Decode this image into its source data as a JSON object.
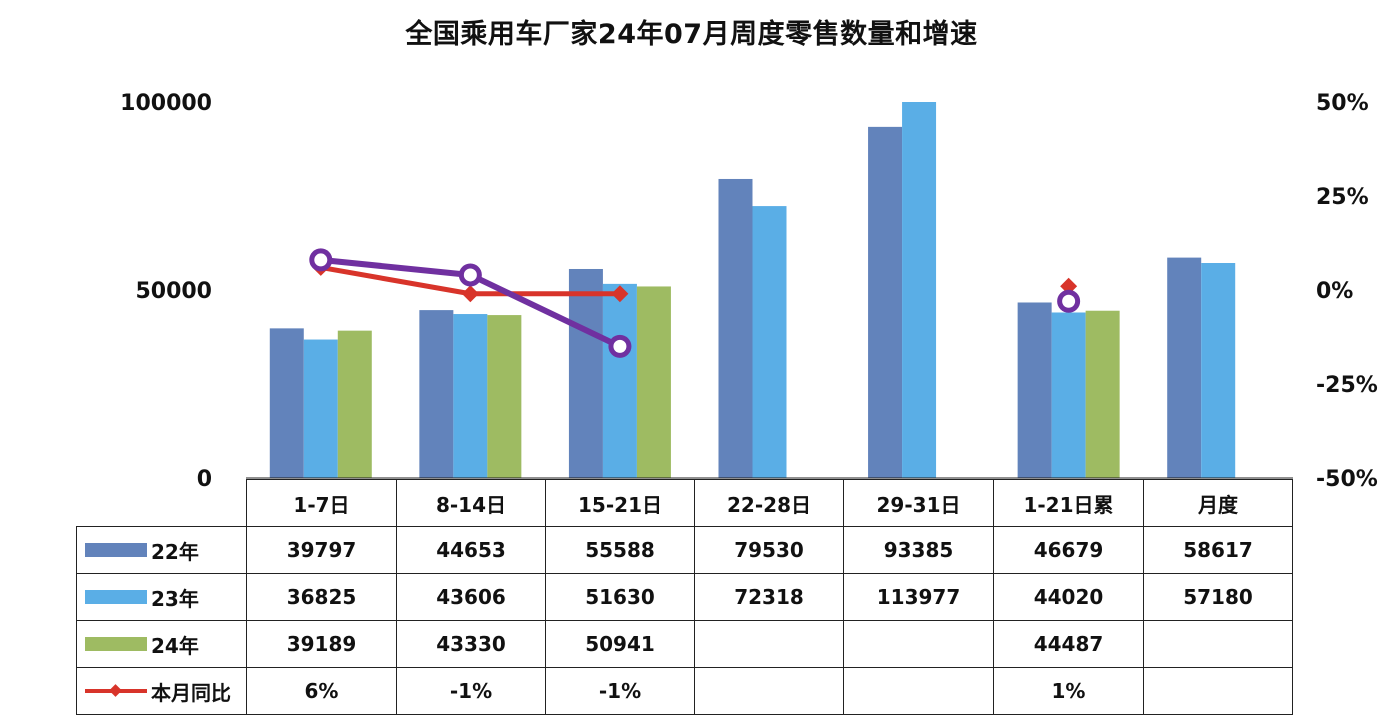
{
  "chart_data": {
    "type": "bar",
    "title": "全国乘用车厂家24年07月周度零售数量和增速",
    "categories": [
      "1-7日",
      "8-14日",
      "15-21日",
      "22-28日",
      "29-31日",
      "1-21日累",
      "月度"
    ],
    "series": [
      {
        "name": "22年",
        "color": "#6283bb",
        "values": [
          39797,
          44653,
          55588,
          79530,
          93385,
          46679,
          58617
        ]
      },
      {
        "name": "23年",
        "color": "#5aaee6",
        "values": [
          36825,
          43606,
          51630,
          72318,
          113977,
          44020,
          57180
        ]
      },
      {
        "name": "24年",
        "color": "#9ebb62",
        "values": [
          39189,
          43330,
          50941,
          null,
          null,
          44487,
          null
        ]
      }
    ],
    "line_series": [
      {
        "name": "本月同比",
        "color": "#d8342a",
        "values": [
          6,
          -1,
          -1,
          null,
          null,
          1,
          null
        ]
      },
      {
        "color": "#7030a0",
        "values": [
          8,
          4,
          -15,
          null,
          null,
          -3,
          null
        ]
      }
    ],
    "table_rows": [
      {
        "label": "22年",
        "cells": [
          "39797",
          "44653",
          "55588",
          "79530",
          "93385",
          "46679",
          "58617"
        ]
      },
      {
        "label": "23年",
        "cells": [
          "36825",
          "43606",
          "51630",
          "72318",
          "113977",
          "44020",
          "57180"
        ]
      },
      {
        "label": "24年",
        "cells": [
          "39189",
          "43330",
          "50941",
          "",
          "",
          "44487",
          ""
        ]
      },
      {
        "label": "本月同比",
        "cells": [
          "6%",
          "-1%",
          "-1%",
          "",
          "",
          "1%",
          ""
        ]
      }
    ],
    "y_left": {
      "min": 0,
      "max": 100000,
      "ticks": [
        "0",
        "50000",
        "100000"
      ]
    },
    "y_right": {
      "min": -50,
      "max": 50,
      "ticks": [
        "-50%",
        "-25%",
        "0%",
        "25%",
        "50%"
      ]
    },
    "legend_position": "data-table",
    "grid": false
  }
}
